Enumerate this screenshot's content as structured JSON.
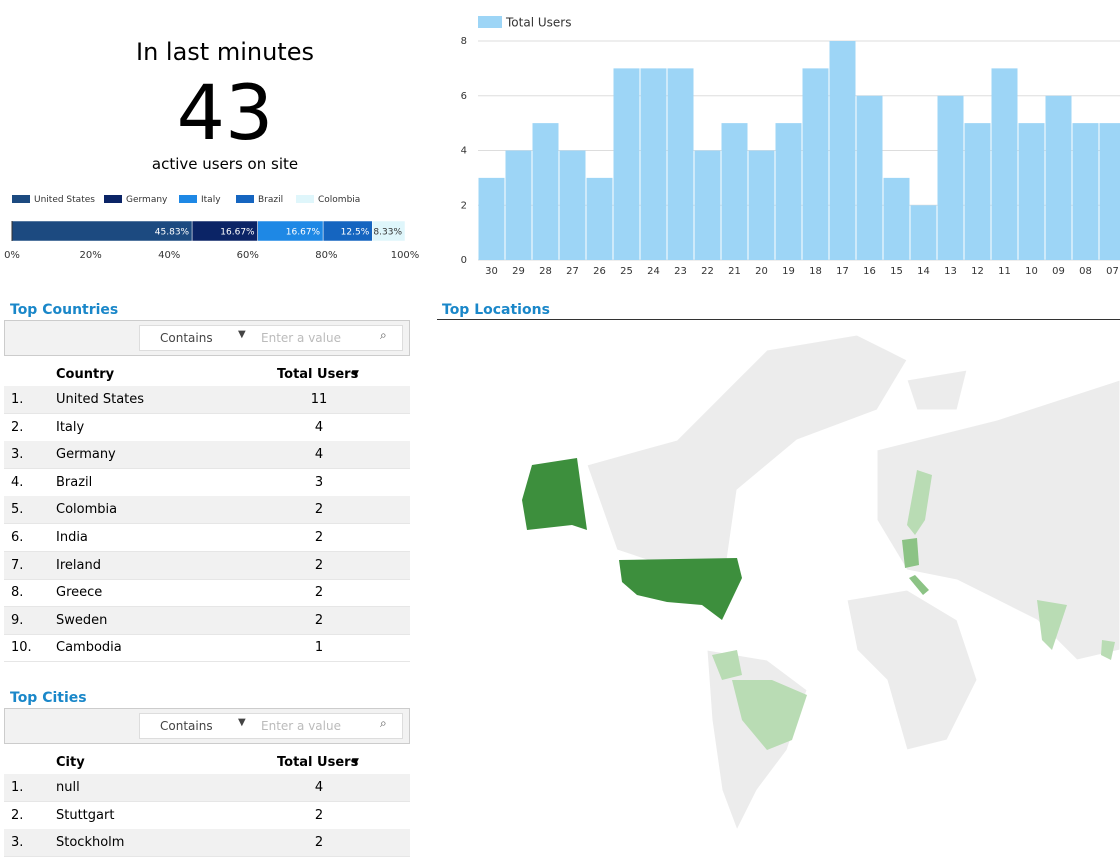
{
  "realtime": {
    "title": "In last minutes",
    "value": 43,
    "subtitle": "active users on site"
  },
  "chart_data": [
    {
      "type": "stacked-bar",
      "xlim": [
        0,
        100
      ],
      "xticks": [
        {
          "value": 0,
          "label": "0%"
        },
        {
          "value": 20,
          "label": "20%"
        },
        {
          "value": 40,
          "label": "40%"
        },
        {
          "value": 60,
          "label": "60%"
        },
        {
          "value": 80,
          "label": "80%"
        },
        {
          "value": 100,
          "label": "100%"
        }
      ],
      "series": [
        {
          "name": "United States",
          "color": "#1c4a80",
          "values": [
            45.83
          ],
          "value_labels": [
            "45.83%"
          ]
        },
        {
          "name": "Germany",
          "color": "#0b2466",
          "values": [
            16.67
          ],
          "value_labels": [
            "16.67%"
          ]
        },
        {
          "name": "Italy",
          "color": "#1e88e5",
          "values": [
            16.67
          ],
          "value_labels": [
            "16.67%"
          ]
        },
        {
          "name": "Brazil",
          "color": "#1565c0",
          "values": [
            12.5
          ],
          "value_labels": [
            "12.5%"
          ]
        },
        {
          "name": "Colombia",
          "color": "#dff6fb",
          "values": [
            8.33
          ],
          "value_labels": [
            "8.33%"
          ]
        }
      ]
    },
    {
      "type": "bar",
      "categories": [
        "30",
        "29",
        "28",
        "27",
        "26",
        "25",
        "24",
        "23",
        "22",
        "21",
        "20",
        "19",
        "18",
        "17",
        "16",
        "15",
        "14",
        "13",
        "12",
        "11",
        "10",
        "09",
        "08",
        "07"
      ],
      "series": [
        {
          "name": "Total Users",
          "color": "#9dd5f6",
          "values": [
            3,
            4,
            5,
            4,
            3,
            7,
            7,
            7,
            4,
            5,
            4,
            5,
            7,
            8,
            6,
            3,
            2,
            6,
            5,
            7,
            5,
            6,
            5,
            5
          ]
        }
      ],
      "ylim": [
        0,
        8
      ],
      "yticks": [
        0,
        2,
        4,
        6,
        8
      ],
      "grid": true
    }
  ],
  "countries": {
    "title": "Top Countries",
    "filter": "Contains",
    "placeholder": "Enter a value",
    "headers": [
      "Country",
      "Total Users"
    ],
    "rows": [
      [
        "1.",
        "United States",
        11
      ],
      [
        "2.",
        "Italy",
        4
      ],
      [
        "3.",
        "Germany",
        4
      ],
      [
        "4.",
        "Brazil",
        3
      ],
      [
        "5.",
        "Colombia",
        2
      ],
      [
        "6.",
        "India",
        2
      ],
      [
        "7.",
        "Ireland",
        2
      ],
      [
        "8.",
        "Greece",
        2
      ],
      [
        "9.",
        "Sweden",
        2
      ],
      [
        "10.",
        "Cambodia",
        1
      ]
    ]
  },
  "cities": {
    "title": "Top  Cities",
    "filter": "Contains",
    "placeholder": "Enter a value",
    "headers": [
      "City",
      "Total Users"
    ],
    "rows": [
      [
        "1.",
        "null",
        4
      ],
      [
        "2.",
        "Stuttgart",
        2
      ],
      [
        "3.",
        "Stockholm",
        2
      ]
    ]
  },
  "map": {
    "title": "Top Locations"
  }
}
